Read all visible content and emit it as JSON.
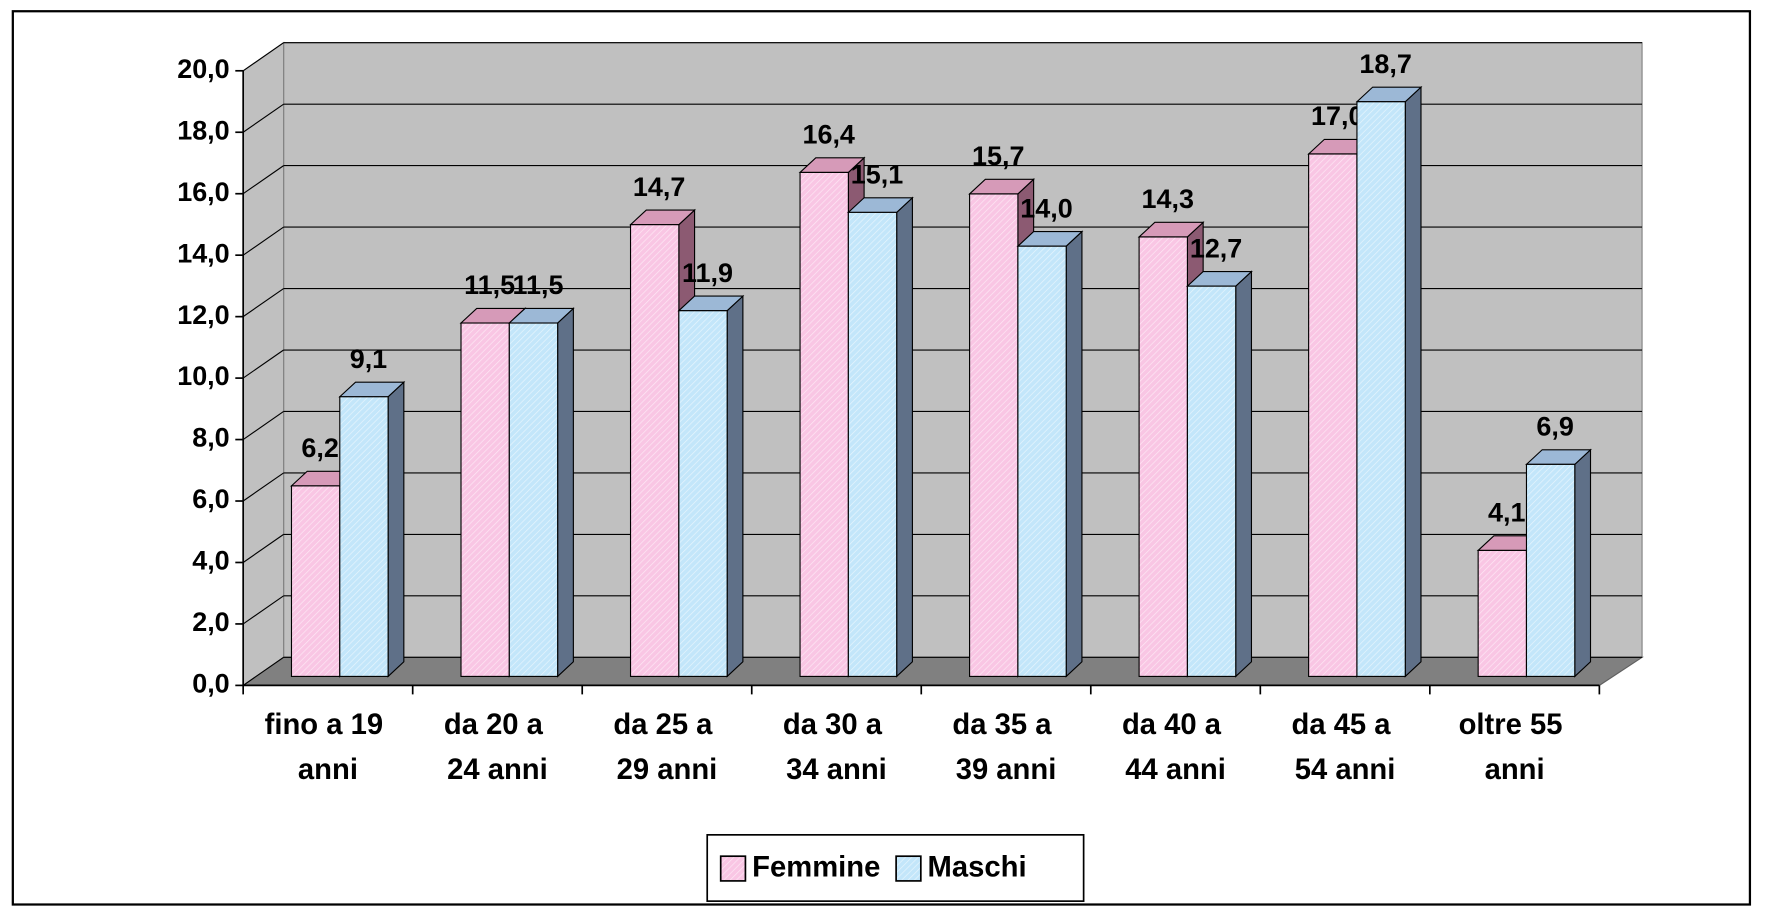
{
  "chart_data": {
    "type": "bar3d",
    "categories": [
      "fino a 19 anni",
      "da 20 a 24 anni",
      "da 25 a 29 anni",
      "da 30 a 34 anni",
      "da 35 a 39 anni",
      "da 40 a 44 anni",
      "da 45 a 54 anni",
      "oltre 55 anni"
    ],
    "series": [
      {
        "name": "Femmine",
        "color": "#f9c6e4",
        "values": [
          6.2,
          11.5,
          14.7,
          16.4,
          15.7,
          14.3,
          17.0,
          4.1
        ],
        "value_labels": [
          "6,2",
          "11,5",
          "14,7",
          "16,4",
          "15,7",
          "14,3",
          "17,0",
          "4,1"
        ]
      },
      {
        "name": "Maschi",
        "color": "#c3e6fa",
        "values": [
          9.1,
          11.5,
          11.9,
          15.1,
          14.0,
          12.7,
          18.7,
          6.9
        ],
        "value_labels": [
          "9,1",
          "11,5",
          "11,9",
          "15,1",
          "14,0",
          "12,7",
          "18,7",
          "6,9"
        ]
      }
    ],
    "ylim": [
      0,
      20
    ],
    "yticks": [
      {
        "value": 0,
        "label": "0,0"
      },
      {
        "value": 2,
        "label": "2,0"
      },
      {
        "value": 4,
        "label": "4,0"
      },
      {
        "value": 6,
        "label": "6,0"
      },
      {
        "value": 8,
        "label": "8,0"
      },
      {
        "value": 10,
        "label": "10,0"
      },
      {
        "value": 12,
        "label": "12,0"
      },
      {
        "value": 14,
        "label": "14,0"
      },
      {
        "value": 16,
        "label": "16,0"
      },
      {
        "value": 18,
        "label": "18,0"
      },
      {
        "value": 20,
        "label": "20,0"
      }
    ],
    "grid": true,
    "legend": "bottom"
  }
}
